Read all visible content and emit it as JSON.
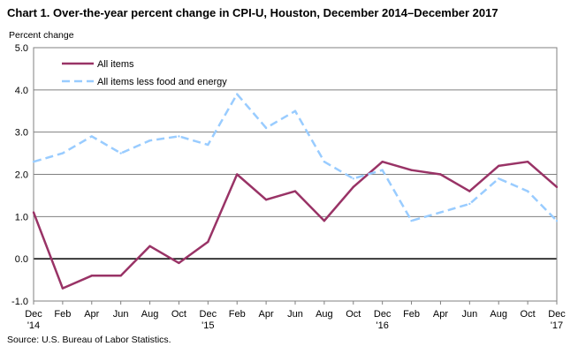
{
  "title": "Chart 1. Over-the-year percent change in CPI-U, Houston,  December 2014–December 2017",
  "source": "Source: U.S. Bureau of Labor Statistics.",
  "chart_data": {
    "type": "line",
    "ylabel": "Percent change",
    "ylim": [
      -1.0,
      5.0
    ],
    "yticks": [
      "-1.0",
      "0.0",
      "1.0",
      "2.0",
      "3.0",
      "4.0",
      "5.0"
    ],
    "grid": true,
    "legend_position": "top-left",
    "x_tick_labels": [
      {
        "month": "Dec",
        "year": "'14"
      },
      {
        "month": "Feb",
        "year": ""
      },
      {
        "month": "Apr",
        "year": ""
      },
      {
        "month": "Jun",
        "year": ""
      },
      {
        "month": "Aug",
        "year": ""
      },
      {
        "month": "Oct",
        "year": ""
      },
      {
        "month": "Dec",
        "year": "'15"
      },
      {
        "month": "Feb",
        "year": ""
      },
      {
        "month": "Apr",
        "year": ""
      },
      {
        "month": "Jun",
        "year": ""
      },
      {
        "month": "Aug",
        "year": ""
      },
      {
        "month": "Oct",
        "year": ""
      },
      {
        "month": "Dec",
        "year": "'16"
      },
      {
        "month": "Feb",
        "year": ""
      },
      {
        "month": "Apr",
        "year": ""
      },
      {
        "month": "Jun",
        "year": ""
      },
      {
        "month": "Aug",
        "year": ""
      },
      {
        "month": "Oct",
        "year": ""
      },
      {
        "month": "Dec",
        "year": "'17"
      }
    ],
    "series": [
      {
        "name": "All items",
        "color": "#993366",
        "dash": "solid",
        "values": [
          1.1,
          -0.7,
          -0.4,
          -0.4,
          0.3,
          -0.1,
          0.4,
          2.0,
          1.4,
          1.6,
          0.9,
          1.7,
          2.3,
          2.1,
          2.0,
          1.6,
          2.2,
          2.3,
          1.7
        ]
      },
      {
        "name": "All items less food and energy",
        "color": "#99ccff",
        "dash": "dashed",
        "values": [
          2.3,
          2.5,
          2.9,
          2.5,
          2.8,
          2.9,
          2.7,
          3.9,
          3.1,
          3.5,
          2.3,
          1.9,
          2.1,
          0.9,
          1.1,
          1.3,
          1.9,
          1.6,
          0.9
        ]
      }
    ]
  }
}
